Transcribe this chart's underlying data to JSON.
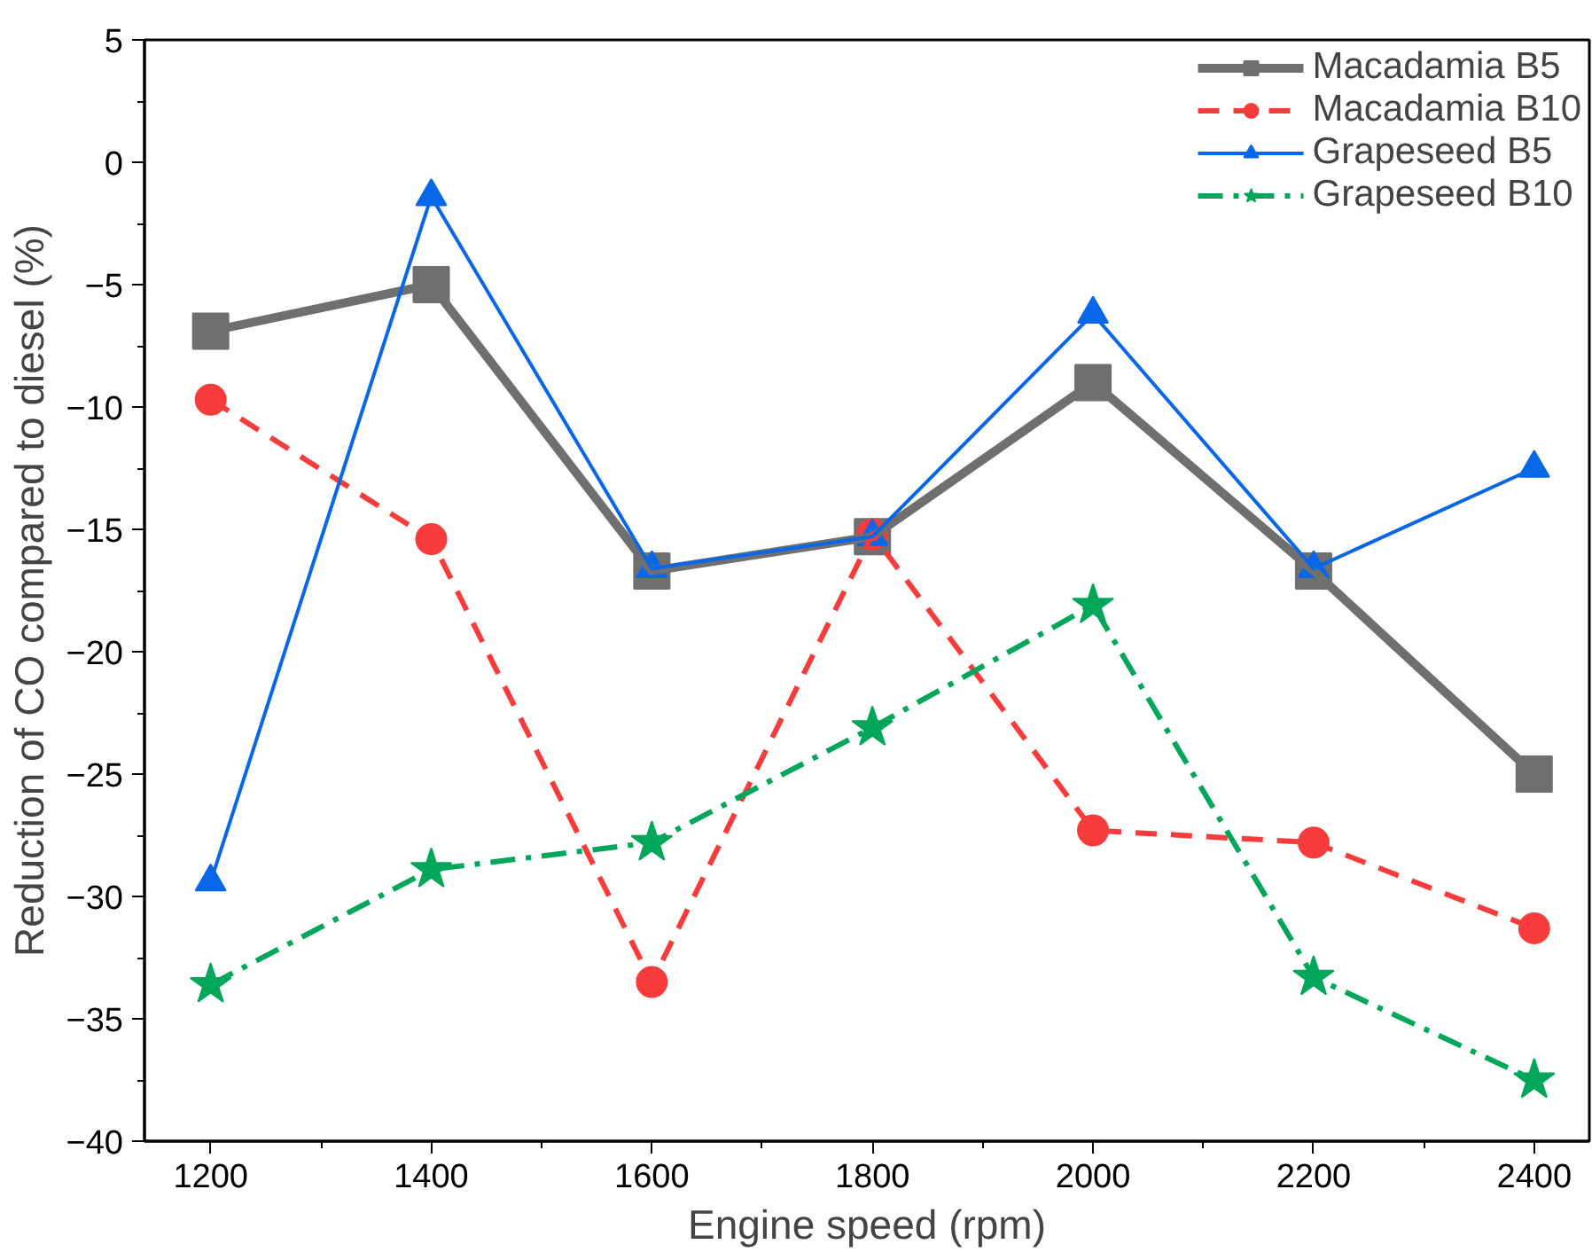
{
  "chart_data": {
    "type": "line",
    "xlabel": "Engine speed (rpm)",
    "ylabel": "Reduction of CO compared to diesel (%)",
    "x": [
      1200,
      1400,
      1600,
      1800,
      2000,
      2200,
      2400
    ],
    "xlim": [
      1140,
      2450
    ],
    "xticks": [
      1200,
      1400,
      1600,
      1800,
      2000,
      2200,
      2400
    ],
    "ylim": [
      -40,
      5
    ],
    "yticks": [
      5,
      0,
      -5,
      -10,
      -15,
      -20,
      -25,
      -30,
      -35,
      -40
    ],
    "grid": false,
    "legend": "top right",
    "series": [
      {
        "name": "Macadamia B5",
        "color": "#6f6f6f",
        "marker": "square",
        "line_style": "solid",
        "values": [
          -6.9,
          -5.0,
          -16.7,
          -15.3,
          -9.0,
          -16.7,
          -25.0
        ]
      },
      {
        "name": "Macadamia B10",
        "color": "#f83c3c",
        "marker": "circle",
        "line_style": "dashed",
        "values": [
          -9.7,
          -15.4,
          -33.5,
          -15.2,
          -27.3,
          -27.8,
          -31.3
        ]
      },
      {
        "name": "Grapeseed B5",
        "color": "#0866e8",
        "marker": "triangle",
        "line_style": "solid",
        "values": [
          -29.4,
          -1.4,
          -16.6,
          -15.3,
          -6.2,
          -16.6,
          -12.5
        ]
      },
      {
        "name": "Grapeseed B10",
        "color": "#00a65a",
        "marker": "star",
        "line_style": "dashdot",
        "values": [
          -33.6,
          -28.9,
          -27.8,
          -23.1,
          -18.1,
          -33.3,
          -37.5
        ]
      }
    ]
  }
}
